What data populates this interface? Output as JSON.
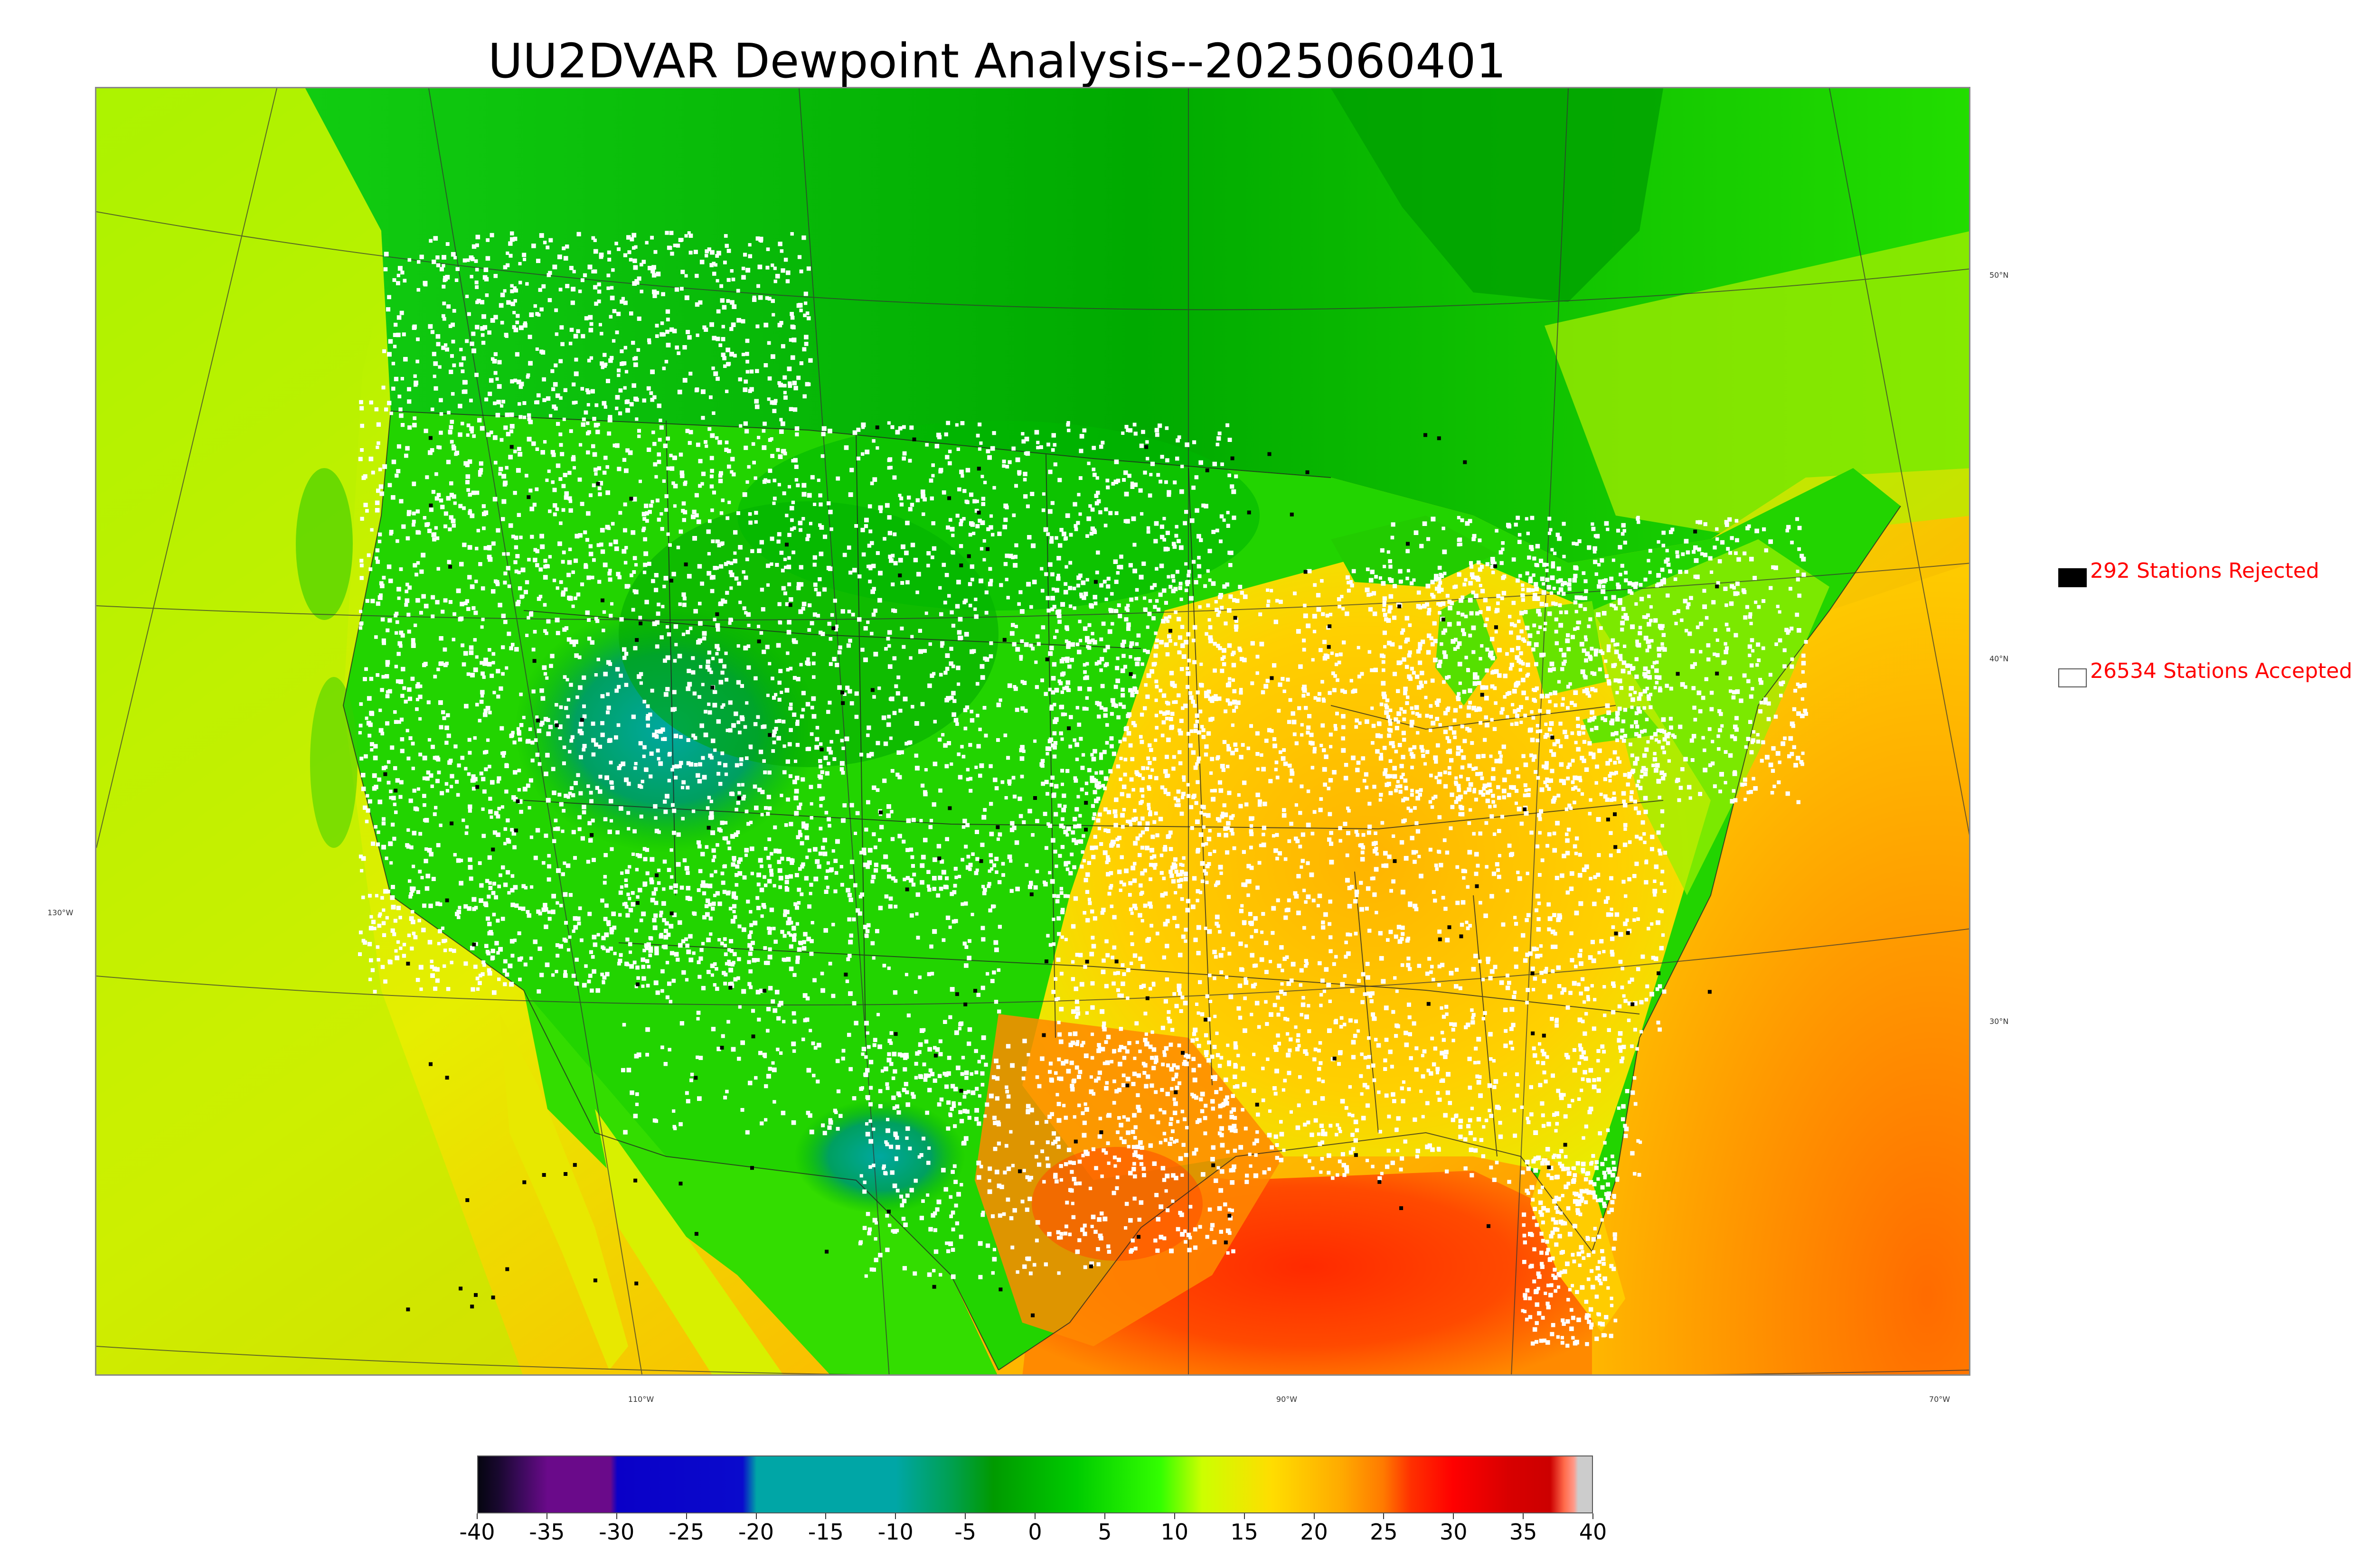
{
  "title": "UU2DVAR Dewpoint Analysis--2025060401",
  "longitude_labels": [
    "110°W",
    "90°W",
    "70°W"
  ],
  "latitude_labels": [
    "50°N",
    "40°N",
    "30°N",
    "130°W"
  ],
  "legend": {
    "rejected": {
      "label": "292 Stations Rejected",
      "count": 292,
      "swatch_color": "#000000"
    },
    "accepted": {
      "label": "26534 Stations Accepted",
      "count": 26534,
      "swatch_color": "#ffffff"
    }
  },
  "colorbar": {
    "min": -40,
    "max": 40,
    "ticks": [
      "-40",
      "-35",
      "-30",
      "-25",
      "-20",
      "-15",
      "-10",
      "-5",
      "0",
      "5",
      "10",
      "15",
      "20",
      "25",
      "30",
      "35",
      "40"
    ],
    "stops": [
      {
        "v": -40,
        "c": "#050510"
      },
      {
        "v": -38.5,
        "c": "#1a0830"
      },
      {
        "v": -37,
        "c": "#3a0a5a"
      },
      {
        "v": -35,
        "c": "#6a0a8a"
      },
      {
        "v": -30.5,
        "c": "#6a0a8a"
      },
      {
        "v": -30,
        "c": "#0a00c8"
      },
      {
        "v": -21,
        "c": "#0a0acc"
      },
      {
        "v": -20,
        "c": "#00a6a6"
      },
      {
        "v": -10,
        "c": "#00a6a6"
      },
      {
        "v": -6,
        "c": "#00a050"
      },
      {
        "v": -3,
        "c": "#009a00"
      },
      {
        "v": 3,
        "c": "#00cc00"
      },
      {
        "v": 9,
        "c": "#33ff00"
      },
      {
        "v": 12,
        "c": "#ccff00"
      },
      {
        "v": 17,
        "c": "#ffdd00"
      },
      {
        "v": 22,
        "c": "#ffaa00"
      },
      {
        "v": 25,
        "c": "#ff7a00"
      },
      {
        "v": 27,
        "c": "#ff3000"
      },
      {
        "v": 30,
        "c": "#ff0000"
      },
      {
        "v": 34,
        "c": "#d80000"
      },
      {
        "v": 37,
        "c": "#cc0000"
      },
      {
        "v": 38,
        "c": "#ff6a4a"
      },
      {
        "v": 38.7,
        "c": "#ff9a8a"
      },
      {
        "v": 39,
        "c": "#cccccc"
      },
      {
        "v": 40,
        "c": "#cccccc"
      }
    ]
  },
  "colors": {
    "ocean_gradient": [
      "#c6ef00",
      "#ffb000",
      "#ff5a00"
    ],
    "land_cold": "#00b000",
    "land_warm": "#ffcc00"
  }
}
